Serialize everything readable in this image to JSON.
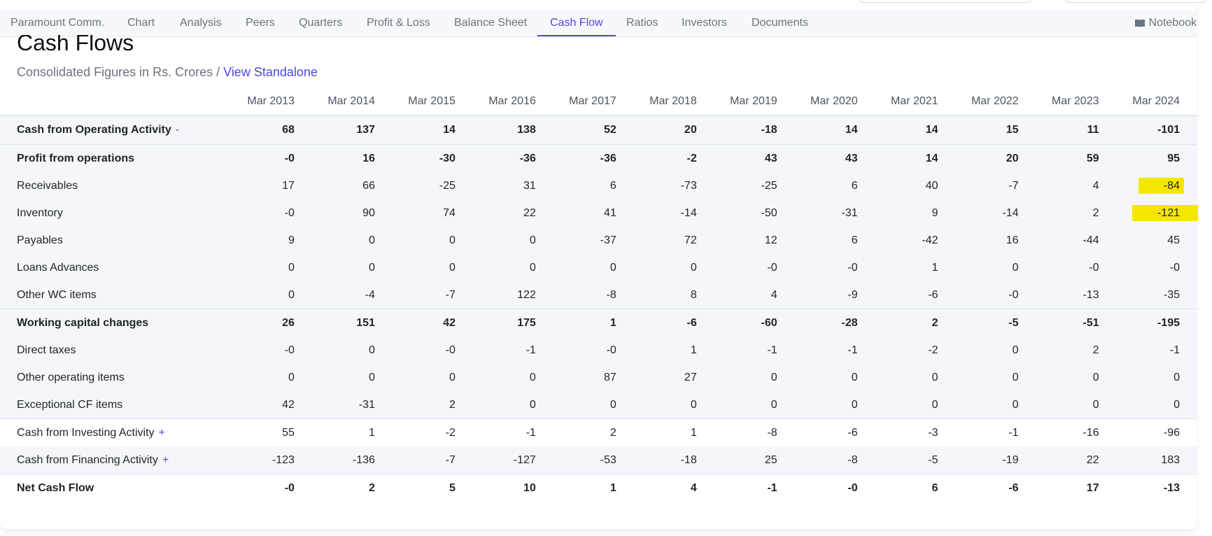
{
  "tabs": [
    {
      "label": "Paramount Comm.",
      "active": false
    },
    {
      "label": "Chart",
      "active": false
    },
    {
      "label": "Analysis",
      "active": false
    },
    {
      "label": "Peers",
      "active": false
    },
    {
      "label": "Quarters",
      "active": false
    },
    {
      "label": "Profit & Loss",
      "active": false
    },
    {
      "label": "Balance Sheet",
      "active": false
    },
    {
      "label": "Cash Flow",
      "active": true
    },
    {
      "label": "Ratios",
      "active": false
    },
    {
      "label": "Investors",
      "active": false
    },
    {
      "label": "Documents",
      "active": false
    }
  ],
  "notebook_label": "Notebook",
  "section": {
    "title": "Cash Flows",
    "subtitle": "Consolidated Figures in Rs. Crores / ",
    "link": "View Standalone"
  },
  "table": {
    "years": [
      "Mar 2013",
      "Mar 2014",
      "Mar 2015",
      "Mar 2016",
      "Mar 2017",
      "Mar 2018",
      "Mar 2019",
      "Mar 2020",
      "Mar 2021",
      "Mar 2022",
      "Mar 2023",
      "Mar 2024"
    ],
    "rows": [
      {
        "label": "Cash from Operating Activity",
        "toggle": "-",
        "kind": "main",
        "values": [
          "68",
          "137",
          "14",
          "138",
          "52",
          "20",
          "-18",
          "14",
          "14",
          "15",
          "11",
          "-101"
        ]
      },
      {
        "label": "Profit from operations",
        "kind": "subtotal",
        "values": [
          "-0",
          "16",
          "-30",
          "-36",
          "-36",
          "-2",
          "43",
          "43",
          "14",
          "20",
          "59",
          "95"
        ]
      },
      {
        "label": "Receivables",
        "kind": "sub",
        "values": [
          "17",
          "66",
          "-25",
          "31",
          "6",
          "-73",
          "-25",
          "6",
          "40",
          "-7",
          "4",
          "-84"
        ],
        "highlight_last": true
      },
      {
        "label": "Inventory",
        "kind": "sub",
        "values": [
          "-0",
          "90",
          "74",
          "22",
          "41",
          "-14",
          "-50",
          "-31",
          "9",
          "-14",
          "2",
          "-121"
        ],
        "highlight_last": true
      },
      {
        "label": "Payables",
        "kind": "sub",
        "values": [
          "9",
          "0",
          "0",
          "0",
          "-37",
          "72",
          "12",
          "6",
          "-42",
          "16",
          "-44",
          "45"
        ]
      },
      {
        "label": "Loans Advances",
        "kind": "sub",
        "values": [
          "0",
          "0",
          "0",
          "0",
          "0",
          "0",
          "-0",
          "-0",
          "1",
          "0",
          "-0",
          "-0"
        ]
      },
      {
        "label": "Other WC items",
        "kind": "sub",
        "values": [
          "0",
          "-4",
          "-7",
          "122",
          "-8",
          "8",
          "4",
          "-9",
          "-6",
          "-0",
          "-13",
          "-35"
        ]
      },
      {
        "label": "Working capital changes",
        "kind": "subtotal",
        "values": [
          "26",
          "151",
          "42",
          "175",
          "1",
          "-6",
          "-60",
          "-28",
          "2",
          "-5",
          "-51",
          "-195"
        ]
      },
      {
        "label": "Direct taxes",
        "kind": "sub",
        "values": [
          "-0",
          "0",
          "-0",
          "-1",
          "-0",
          "1",
          "-1",
          "-1",
          "-2",
          "0",
          "2",
          "-1"
        ]
      },
      {
        "label": "Other operating items",
        "kind": "sub",
        "values": [
          "0",
          "0",
          "0",
          "0",
          "87",
          "27",
          "0",
          "0",
          "0",
          "0",
          "0",
          "0"
        ]
      },
      {
        "label": "Exceptional CF items",
        "kind": "sub",
        "values": [
          "42",
          "-31",
          "2",
          "0",
          "0",
          "0",
          "0",
          "0",
          "0",
          "0",
          "0",
          "0"
        ]
      },
      {
        "label": "Cash from Investing Activity",
        "toggle": "+",
        "kind": "collapsed",
        "values": [
          "55",
          "1",
          "-2",
          "-1",
          "2",
          "1",
          "-8",
          "-6",
          "-3",
          "-1",
          "-16",
          "-96"
        ]
      },
      {
        "label": "Cash from Financing Activity",
        "toggle": "+",
        "kind": "collapsed",
        "values": [
          "-123",
          "-136",
          "-7",
          "-127",
          "-53",
          "-18",
          "25",
          "-8",
          "-5",
          "-19",
          "22",
          "183"
        ]
      },
      {
        "label": "Net Cash Flow",
        "kind": "main",
        "values": [
          "-0",
          "2",
          "5",
          "10",
          "1",
          "4",
          "-1",
          "-0",
          "6",
          "-6",
          "17",
          "-13"
        ]
      }
    ]
  },
  "colors": {
    "accent": "#4f46e5",
    "highlight": "#f5e600",
    "shade": "#f5f6fb"
  }
}
